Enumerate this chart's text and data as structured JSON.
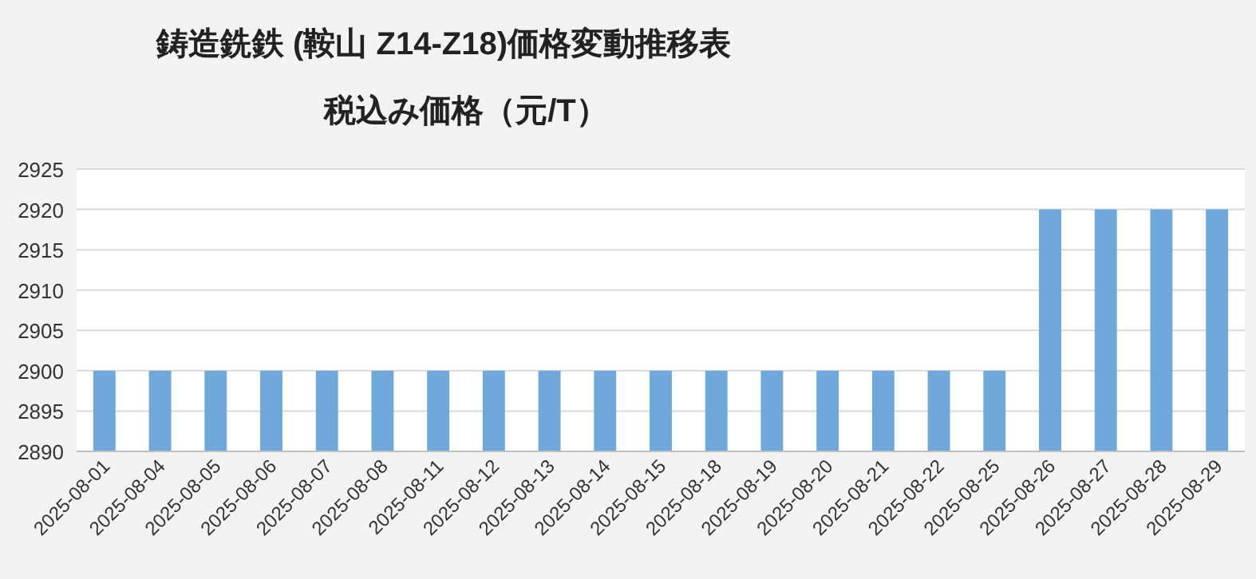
{
  "chart_data": {
    "type": "bar",
    "title": "鋳造銑鉄 (鞍山 Z14-Z18)価格変動推移表",
    "subtitle": "税込み価格（元/T）",
    "categories": [
      "2025-08-01",
      "2025-08-04",
      "2025-08-05",
      "2025-08-06",
      "2025-08-07",
      "2025-08-08",
      "2025-08-11",
      "2025-08-12",
      "2025-08-13",
      "2025-08-14",
      "2025-08-15",
      "2025-08-18",
      "2025-08-19",
      "2025-08-20",
      "2025-08-21",
      "2025-08-22",
      "2025-08-25",
      "2025-08-26",
      "2025-08-27",
      "2025-08-28",
      "2025-08-29"
    ],
    "values": [
      2900,
      2900,
      2900,
      2900,
      2900,
      2900,
      2900,
      2900,
      2900,
      2900,
      2900,
      2900,
      2900,
      2900,
      2900,
      2900,
      2900,
      2920,
      2920,
      2920,
      2920
    ],
    "color": "#70a8dc",
    "ylim": [
      2890,
      2925
    ],
    "yticks": [
      2890,
      2895,
      2900,
      2905,
      2910,
      2915,
      2920,
      2925
    ],
    "grid": "y"
  }
}
